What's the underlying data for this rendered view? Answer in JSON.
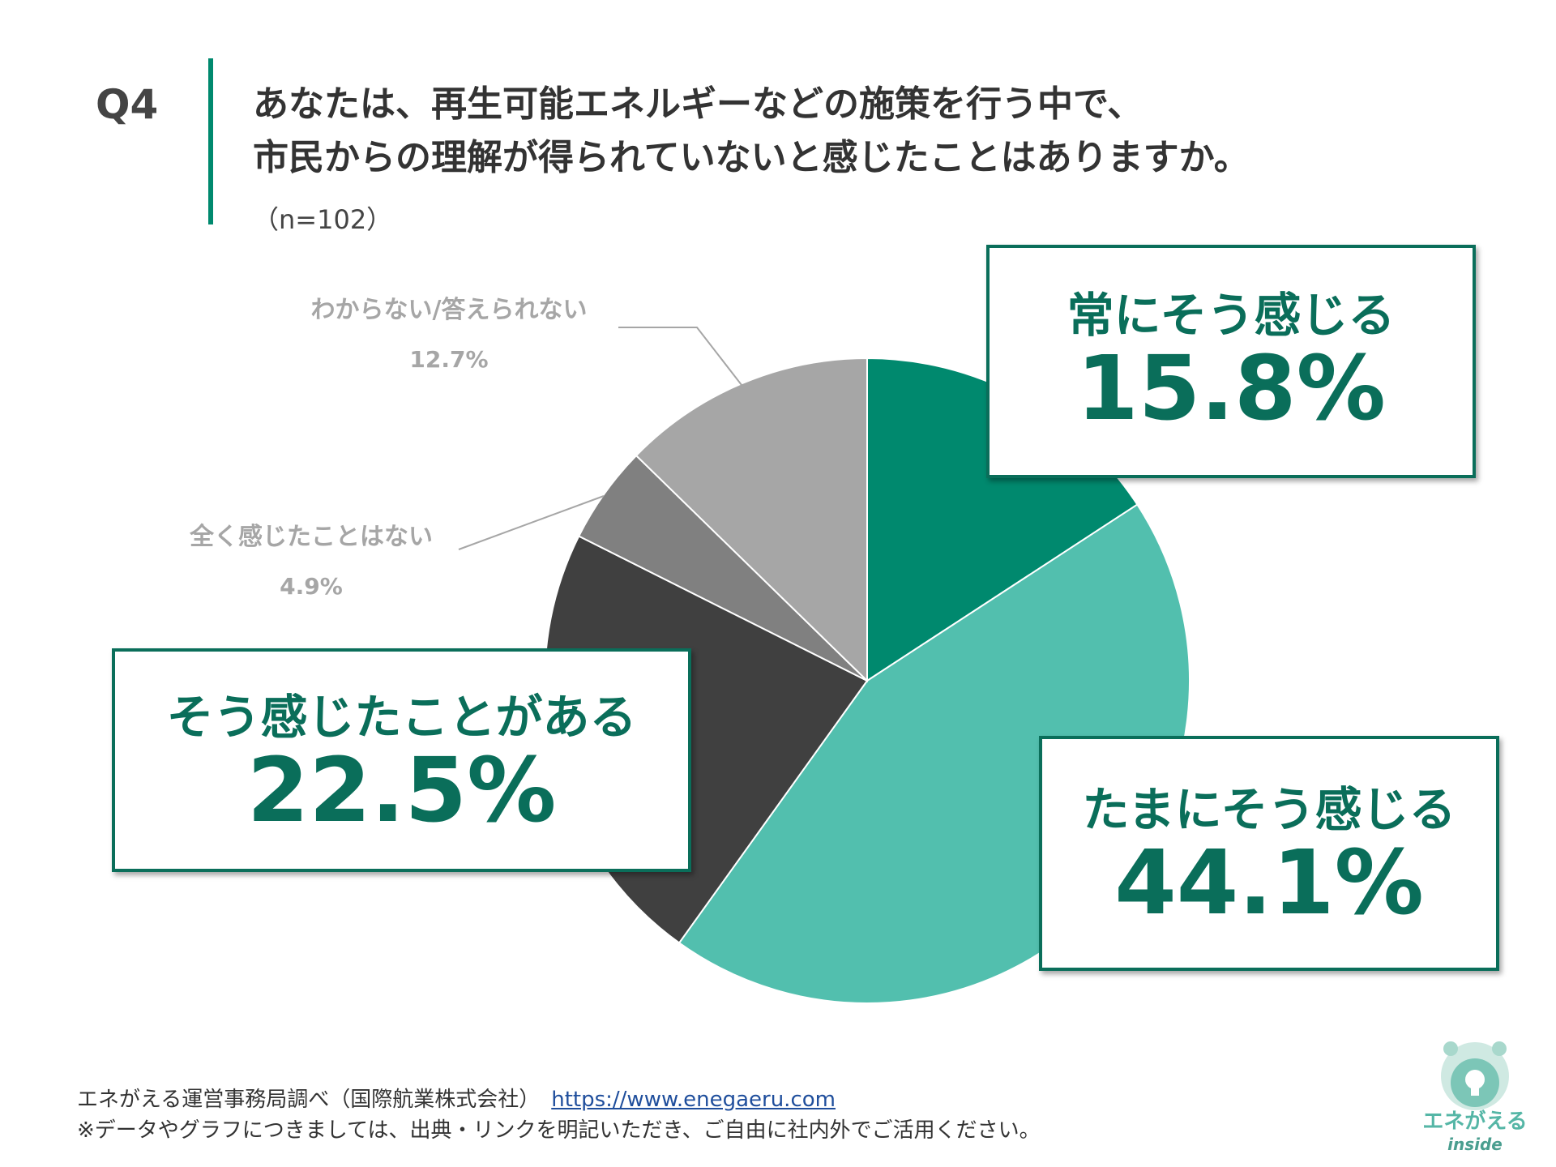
{
  "header": {
    "question_label": "Q4",
    "question_line1": "あなたは、再生可能エネルギーなどの施策を行う中で、",
    "question_line2": "市民からの理解が得られていないと感じたことはありますか。",
    "sample_size": "（n=102）"
  },
  "chart_data": {
    "type": "pie",
    "start_angle": "12 o'clock",
    "direction": "clockwise",
    "slices": [
      {
        "label": "常にそう感じる",
        "value": 15.8,
        "value_label": "15.8%",
        "color": "#00896e"
      },
      {
        "label": "たまにそう感じる",
        "value": 44.1,
        "value_label": "44.1%",
        "color": "#52bfae"
      },
      {
        "label": "そう感じたことがある",
        "value": 22.5,
        "value_label": "22.5%",
        "color": "#404040"
      },
      {
        "label": "全く感じたことはない",
        "value": 4.9,
        "value_label": "4.9%",
        "color": "#808080"
      },
      {
        "label": "わからない/答えられない",
        "value": 12.7,
        "value_label": "12.7%",
        "color": "#a6a6a6"
      }
    ]
  },
  "footer": {
    "source": "エネがえる運営事務局調べ（国際航業株式会社）",
    "url": "https://www.enegaeru.com",
    "note": "※データやグラフにつきましては、出典・リンクを明記いただき、ご自由に社内外でご活用ください。"
  },
  "logo": {
    "icon": "frog-lightbulb-logo",
    "title": "エネがえる",
    "subtitle": "inside"
  },
  "colors": {
    "accent": "#00896e",
    "callout_text": "#0a6e5a"
  }
}
